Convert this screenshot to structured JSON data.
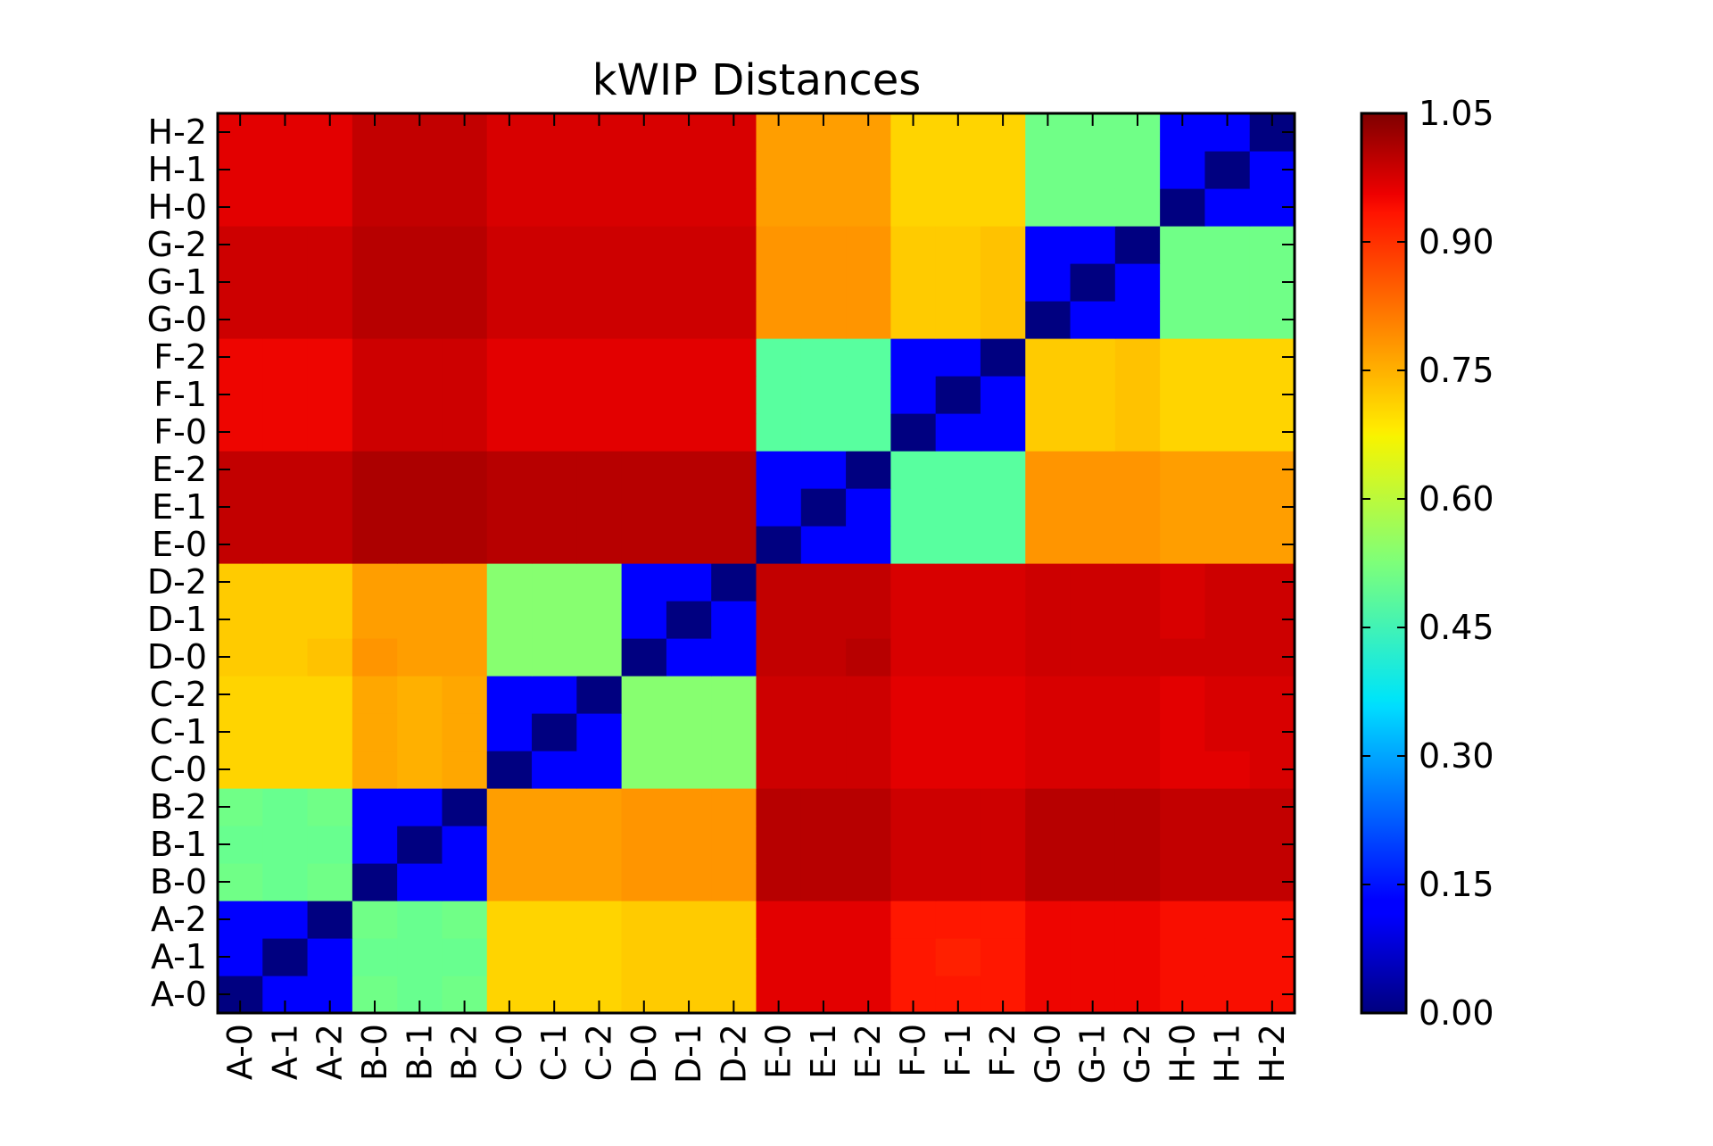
{
  "chart_data": {
    "type": "heatmap",
    "title": "kWIP Distances",
    "xlabel": "",
    "ylabel": "",
    "colormap": "jet",
    "x_categories": [
      "A-0",
      "A-1",
      "A-2",
      "B-0",
      "B-1",
      "B-2",
      "C-0",
      "C-1",
      "C-2",
      "D-0",
      "D-1",
      "D-2",
      "E-0",
      "E-1",
      "E-2",
      "F-0",
      "F-1",
      "F-2",
      "G-0",
      "G-1",
      "G-2",
      "H-0",
      "H-1",
      "H-2"
    ],
    "y_categories": [
      "A-0",
      "A-1",
      "A-2",
      "B-0",
      "B-1",
      "B-2",
      "C-0",
      "C-1",
      "C-2",
      "D-0",
      "D-1",
      "D-2",
      "E-0",
      "E-1",
      "E-2",
      "F-0",
      "F-1",
      "F-2",
      "G-0",
      "G-1",
      "G-2",
      "H-0",
      "H-1",
      "H-2"
    ],
    "colorbar": {
      "range": [
        0.0,
        1.05
      ],
      "tick_values": [
        0.0,
        0.15,
        0.3,
        0.45,
        0.6,
        0.75,
        0.9,
        1.05
      ],
      "tick_labels": [
        "0.00",
        "0.15",
        "0.30",
        "0.45",
        "0.60",
        "0.75",
        "0.90",
        "1.05"
      ]
    },
    "values": [
      [
        0.0,
        0.12,
        0.13,
        0.51,
        0.5,
        0.51,
        0.72,
        0.72,
        0.72,
        0.73,
        0.73,
        0.73,
        0.96,
        0.96,
        0.96,
        0.93,
        0.93,
        0.93,
        0.95,
        0.95,
        0.95,
        0.94,
        0.94,
        0.94
      ],
      [
        0.12,
        0.0,
        0.12,
        0.5,
        0.5,
        0.5,
        0.72,
        0.72,
        0.72,
        0.73,
        0.73,
        0.73,
        0.96,
        0.96,
        0.96,
        0.93,
        0.92,
        0.93,
        0.95,
        0.95,
        0.95,
        0.94,
        0.94,
        0.94
      ],
      [
        0.13,
        0.12,
        0.0,
        0.51,
        0.5,
        0.51,
        0.72,
        0.72,
        0.72,
        0.73,
        0.73,
        0.73,
        0.96,
        0.96,
        0.96,
        0.93,
        0.93,
        0.93,
        0.95,
        0.95,
        0.95,
        0.94,
        0.94,
        0.94
      ],
      [
        0.51,
        0.5,
        0.51,
        0.0,
        0.12,
        0.12,
        0.78,
        0.78,
        0.78,
        0.79,
        0.79,
        0.79,
        1.0,
        1.0,
        1.0,
        0.98,
        0.98,
        0.98,
        1.0,
        1.0,
        1.0,
        0.99,
        0.99,
        0.99
      ],
      [
        0.5,
        0.5,
        0.5,
        0.12,
        0.0,
        0.12,
        0.78,
        0.78,
        0.78,
        0.79,
        0.79,
        0.79,
        1.0,
        1.0,
        1.0,
        0.98,
        0.98,
        0.98,
        1.0,
        1.0,
        1.0,
        0.99,
        0.99,
        0.99
      ],
      [
        0.51,
        0.5,
        0.51,
        0.12,
        0.12,
        0.0,
        0.78,
        0.78,
        0.78,
        0.79,
        0.79,
        0.79,
        1.0,
        1.0,
        1.0,
        0.98,
        0.98,
        0.98,
        1.0,
        1.0,
        1.0,
        0.99,
        0.99,
        0.99
      ],
      [
        0.72,
        0.72,
        0.72,
        0.77,
        0.76,
        0.77,
        0.0,
        0.12,
        0.12,
        0.54,
        0.54,
        0.54,
        0.98,
        0.98,
        0.98,
        0.96,
        0.96,
        0.96,
        0.97,
        0.97,
        0.97,
        0.96,
        0.96,
        0.97
      ],
      [
        0.72,
        0.72,
        0.72,
        0.77,
        0.76,
        0.77,
        0.12,
        0.0,
        0.12,
        0.54,
        0.54,
        0.54,
        0.98,
        0.98,
        0.98,
        0.96,
        0.96,
        0.96,
        0.97,
        0.97,
        0.97,
        0.96,
        0.97,
        0.97
      ],
      [
        0.72,
        0.72,
        0.72,
        0.77,
        0.76,
        0.77,
        0.12,
        0.12,
        0.0,
        0.54,
        0.54,
        0.54,
        0.98,
        0.98,
        0.98,
        0.96,
        0.96,
        0.96,
        0.97,
        0.97,
        0.97,
        0.96,
        0.97,
        0.97
      ],
      [
        0.73,
        0.73,
        0.74,
        0.79,
        0.78,
        0.78,
        0.54,
        0.54,
        0.54,
        0.0,
        0.12,
        0.12,
        0.99,
        0.99,
        1.0,
        0.97,
        0.97,
        0.97,
        0.98,
        0.98,
        0.98,
        0.98,
        0.98,
        0.98
      ],
      [
        0.73,
        0.73,
        0.73,
        0.78,
        0.78,
        0.78,
        0.54,
        0.54,
        0.54,
        0.12,
        0.0,
        0.12,
        0.99,
        0.99,
        0.99,
        0.97,
        0.97,
        0.97,
        0.98,
        0.98,
        0.98,
        0.97,
        0.98,
        0.98
      ],
      [
        0.73,
        0.73,
        0.73,
        0.78,
        0.78,
        0.78,
        0.54,
        0.54,
        0.54,
        0.12,
        0.12,
        0.0,
        0.99,
        0.99,
        0.99,
        0.97,
        0.97,
        0.97,
        0.98,
        0.98,
        0.98,
        0.97,
        0.98,
        0.98
      ],
      [
        0.99,
        0.99,
        0.99,
        1.01,
        1.01,
        1.01,
        1.0,
        1.0,
        1.0,
        1.0,
        1.0,
        1.0,
        0.0,
        0.12,
        0.13,
        0.48,
        0.48,
        0.48,
        0.79,
        0.79,
        0.79,
        0.78,
        0.78,
        0.78
      ],
      [
        0.99,
        0.99,
        0.99,
        1.01,
        1.01,
        1.01,
        1.0,
        1.0,
        1.0,
        1.0,
        1.0,
        1.0,
        0.12,
        0.0,
        0.12,
        0.48,
        0.48,
        0.48,
        0.79,
        0.79,
        0.79,
        0.78,
        0.78,
        0.78
      ],
      [
        0.99,
        0.99,
        0.99,
        1.01,
        1.01,
        1.01,
        1.0,
        1.0,
        1.0,
        1.0,
        1.0,
        1.0,
        0.13,
        0.12,
        0.0,
        0.48,
        0.48,
        0.48,
        0.79,
        0.79,
        0.79,
        0.78,
        0.78,
        0.78
      ],
      [
        0.95,
        0.95,
        0.95,
        0.98,
        0.98,
        0.98,
        0.96,
        0.96,
        0.96,
        0.96,
        0.96,
        0.96,
        0.48,
        0.48,
        0.48,
        0.0,
        0.12,
        0.12,
        0.73,
        0.73,
        0.74,
        0.72,
        0.72,
        0.72
      ],
      [
        0.95,
        0.95,
        0.95,
        0.98,
        0.98,
        0.98,
        0.96,
        0.96,
        0.96,
        0.96,
        0.96,
        0.96,
        0.48,
        0.48,
        0.48,
        0.12,
        0.0,
        0.12,
        0.73,
        0.73,
        0.74,
        0.72,
        0.72,
        0.72
      ],
      [
        0.95,
        0.95,
        0.95,
        0.98,
        0.98,
        0.98,
        0.96,
        0.96,
        0.96,
        0.96,
        0.96,
        0.96,
        0.48,
        0.48,
        0.48,
        0.12,
        0.12,
        0.0,
        0.73,
        0.73,
        0.74,
        0.72,
        0.72,
        0.72
      ],
      [
        0.98,
        0.98,
        0.98,
        1.0,
        1.0,
        1.0,
        0.98,
        0.98,
        0.98,
        0.98,
        0.98,
        0.98,
        0.79,
        0.79,
        0.79,
        0.73,
        0.73,
        0.74,
        0.0,
        0.12,
        0.12,
        0.51,
        0.51,
        0.51
      ],
      [
        0.98,
        0.98,
        0.98,
        1.0,
        1.0,
        1.0,
        0.98,
        0.98,
        0.98,
        0.98,
        0.98,
        0.98,
        0.79,
        0.79,
        0.79,
        0.73,
        0.73,
        0.74,
        0.12,
        0.0,
        0.12,
        0.51,
        0.51,
        0.51
      ],
      [
        0.98,
        0.98,
        0.98,
        1.0,
        1.0,
        1.0,
        0.98,
        0.98,
        0.98,
        0.98,
        0.98,
        0.98,
        0.79,
        0.79,
        0.79,
        0.73,
        0.73,
        0.74,
        0.12,
        0.12,
        0.0,
        0.51,
        0.51,
        0.51
      ],
      [
        0.96,
        0.96,
        0.96,
        0.99,
        0.99,
        0.99,
        0.97,
        0.97,
        0.97,
        0.97,
        0.97,
        0.97,
        0.78,
        0.78,
        0.78,
        0.72,
        0.72,
        0.72,
        0.51,
        0.51,
        0.51,
        0.0,
        0.12,
        0.13
      ],
      [
        0.96,
        0.96,
        0.96,
        0.99,
        0.99,
        0.99,
        0.97,
        0.97,
        0.97,
        0.97,
        0.97,
        0.97,
        0.78,
        0.78,
        0.78,
        0.72,
        0.72,
        0.72,
        0.51,
        0.51,
        0.51,
        0.12,
        0.0,
        0.12
      ],
      [
        0.96,
        0.96,
        0.96,
        0.99,
        0.99,
        0.99,
        0.97,
        0.97,
        0.97,
        0.97,
        0.97,
        0.97,
        0.78,
        0.78,
        0.78,
        0.72,
        0.72,
        0.72,
        0.51,
        0.51,
        0.51,
        0.13,
        0.12,
        0.0
      ]
    ]
  }
}
